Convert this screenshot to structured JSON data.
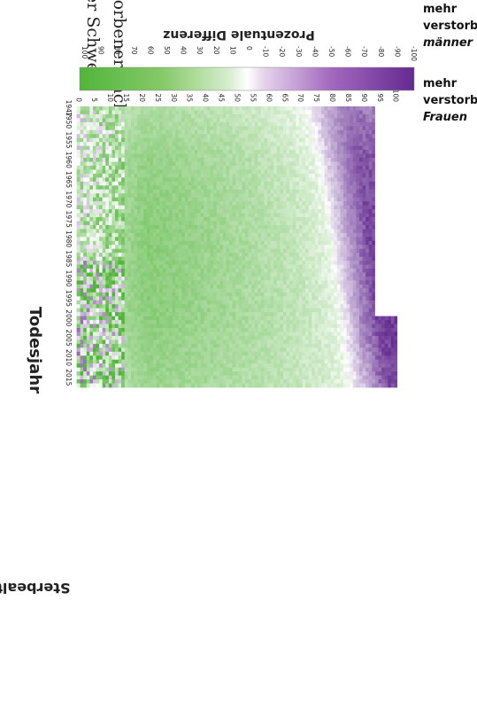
{
  "title": {
    "line1": "torbener nach Jahr und Alter in",
    "line2": "er Schweiz"
  },
  "legend": {
    "title": "Prozentuale Differenz",
    "top_label_1": "mehr",
    "top_label_2": "verstorbene",
    "top_label_3": "männer",
    "bottom_label_1": "mehr",
    "bottom_label_2": "verstorbene",
    "bottom_label_3": "Frauen",
    "ticks": [
      "100",
      "90",
      "80",
      "70",
      "60",
      "50",
      "40",
      "30",
      "20",
      "10",
      "0",
      "-10",
      "-20",
      "-30",
      "-40",
      "-50",
      "-60",
      "-70",
      "-80",
      "-90",
      "-100"
    ],
    "colors": {
      "positive": "#5cb83c",
      "zero": "#ffffff",
      "negative": "#6a2d96"
    }
  },
  "chart_data": {
    "type": "heatmap",
    "xlabel": "Todesjahr",
    "ylabel": "Sterbealter",
    "x_ticks": [
      "1947",
      "1950",
      "1955",
      "1960",
      "1965",
      "1970",
      "1975",
      "1980",
      "1985",
      "1990",
      "1995",
      "2000",
      "2005",
      "2010",
      "2015"
    ],
    "y_ticks": [
      "100",
      "95",
      "90",
      "85",
      "80",
      "75",
      "70",
      "65",
      "60",
      "55",
      "50",
      "45",
      "40",
      "35",
      "30",
      "25",
      "20",
      "15",
      "10",
      "5",
      "0"
    ],
    "xlim": [
      1947,
      2017
    ],
    "ylim": [
      0,
      100
    ],
    "value_range": [
      -100,
      100
    ],
    "missing_region": "ages 94–100 for years 1947–1999 (no data)",
    "pattern": {
      "years": [
        1947,
        1960,
        1980,
        2000,
        2017
      ],
      "zero_crossing_age": [
        72,
        76,
        80,
        83,
        86
      ],
      "max_male_excess_pct": [
        40,
        55,
        62,
        60,
        50
      ],
      "peak_male_excess_age": [
        22,
        22,
        22,
        22,
        23
      ],
      "max_female_excess_pct": [
        -55,
        -75,
        -85,
        -90,
        -80
      ],
      "young_ages_noisy_below": 15
    }
  }
}
